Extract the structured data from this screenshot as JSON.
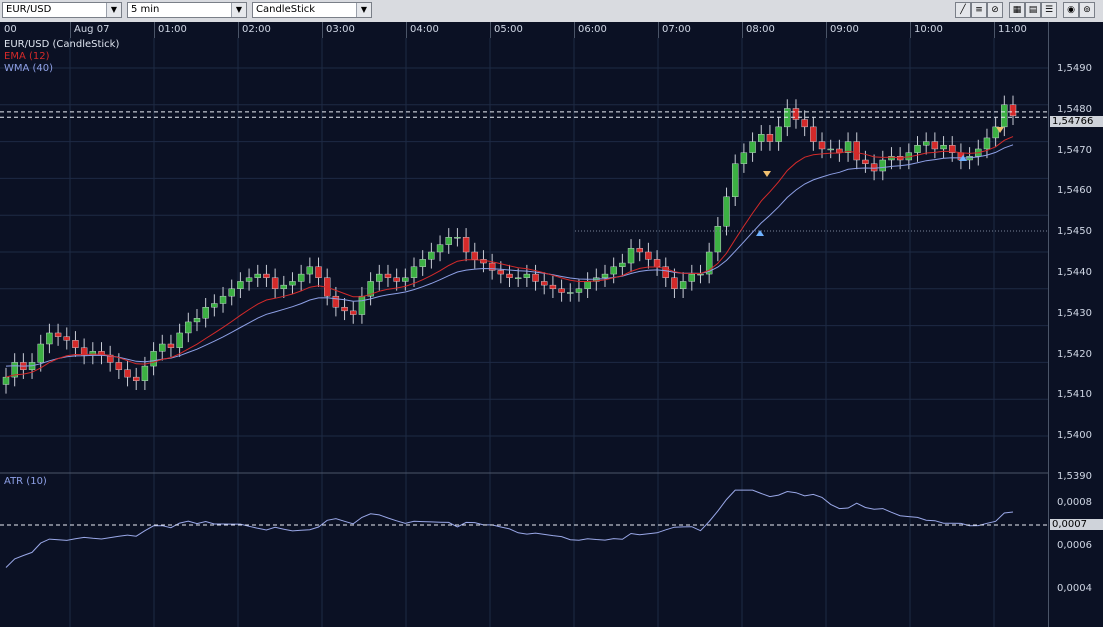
{
  "toolbar": {
    "symbol": "EUR/USD",
    "timeframe": "5 min",
    "chart_type": "CandleStick"
  },
  "time_axis": [
    "00",
    "Aug 07",
    "01:00",
    "02:00",
    "03:00",
    "04:00",
    "05:00",
    "06:00",
    "07:00",
    "08:00",
    "09:00",
    "10:00",
    "11:00"
  ],
  "price_axis": [
    "1,5490",
    "1,5480",
    "1,5470",
    "1,5460",
    "1,5450",
    "1,5440",
    "1,5430",
    "1,5420",
    "1,5410",
    "1,5400",
    "1,5390"
  ],
  "current_price": "1,54766",
  "legend": {
    "main": "EUR/USD (CandleStick)",
    "ema": "EMA (12)",
    "wma": "WMA (40)",
    "atr": "ATR (10)"
  },
  "atr_axis": [
    "0,0008",
    "0,0007",
    "0,0006",
    "0,0004"
  ],
  "atr_current": "0,0007",
  "colors": {
    "background": "#0b1124",
    "grid": "#1e2a44",
    "bull": "#3cb043",
    "bear": "#d42a2a",
    "ema": "#d42a2a",
    "wma": "#8ea0e6",
    "atr": "#9aa8e8"
  },
  "chart_data": {
    "type": "candlestick",
    "title": "EUR/USD (CandleStick)",
    "timeframe": "5 min",
    "ylim": [
      1.539,
      1.5495
    ],
    "closes": [
      1.5406,
      1.541,
      1.5408,
      1.541,
      1.5415,
      1.5418,
      1.5417,
      1.5416,
      1.5414,
      1.5412,
      1.5413,
      1.5412,
      1.541,
      1.5408,
      1.5406,
      1.5405,
      1.5409,
      1.5413,
      1.5415,
      1.5414,
      1.5418,
      1.5421,
      1.5422,
      1.5425,
      1.5426,
      1.5428,
      1.543,
      1.5432,
      1.5433,
      1.5434,
      1.5433,
      1.543,
      1.5431,
      1.5432,
      1.5434,
      1.5436,
      1.5433,
      1.5428,
      1.5425,
      1.5424,
      1.5423,
      1.5428,
      1.5432,
      1.5434,
      1.5433,
      1.5432,
      1.5433,
      1.5436,
      1.5438,
      1.544,
      1.5442,
      1.5444,
      1.5444,
      1.544,
      1.5438,
      1.5437,
      1.5435,
      1.5434,
      1.5433,
      1.5433,
      1.5434,
      1.5432,
      1.5431,
      1.543,
      1.5429,
      1.5429,
      1.543,
      1.5432,
      1.5433,
      1.5434,
      1.5436,
      1.5437,
      1.5441,
      1.544,
      1.5438,
      1.5436,
      1.5433,
      1.543,
      1.5432,
      1.5434,
      1.5434,
      1.544,
      1.5447,
      1.5455,
      1.5464,
      1.5467,
      1.547,
      1.5472,
      1.547,
      1.5474,
      1.5479,
      1.5476,
      1.5474,
      1.547,
      1.5468,
      1.5468,
      1.5467,
      1.547,
      1.5465,
      1.5464,
      1.5462,
      1.5465,
      1.5466,
      1.5465,
      1.5467,
      1.5469,
      1.547,
      1.5468,
      1.5469,
      1.5467,
      1.5465,
      1.5466,
      1.5468,
      1.5471,
      1.5474,
      1.548,
      1.5477
    ],
    "ema_period": 12,
    "wma_period": 40,
    "atr_period": 10,
    "atr_ylim": [
      0.0003,
      0.0009
    ]
  }
}
